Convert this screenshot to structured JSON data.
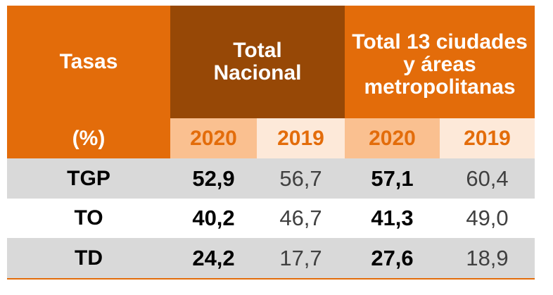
{
  "header": {
    "rate_label": "Tasas",
    "unit_label": "(%)",
    "groups": [
      "Total Nacional",
      "Total 13 ciudades y áreas metropolitanas"
    ],
    "years": [
      "2020",
      "2019",
      "2020",
      "2019"
    ]
  },
  "table": {
    "rows": [
      [
        "TGP",
        "52,9",
        "56,7",
        "57,1",
        "60,4"
      ],
      [
        "TO",
        "40,2",
        "46,7",
        "41,3",
        "49,0"
      ],
      [
        "TD",
        "24,2",
        "17,7",
        "27,6",
        "18,9"
      ]
    ]
  }
}
